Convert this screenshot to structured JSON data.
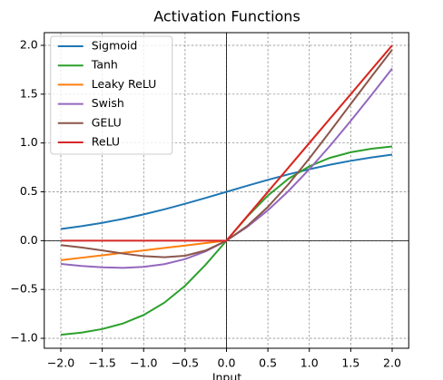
{
  "chart_data": {
    "type": "line",
    "title": "Activation Functions",
    "x_label": "Input",
    "x": [
      -2,
      -1.75,
      -1.5,
      -1.25,
      -1,
      -0.75,
      -0.5,
      -0.25,
      0,
      0.25,
      0.5,
      0.75,
      1,
      1.25,
      1.5,
      1.75,
      2
    ],
    "series": [
      {
        "name": "Sigmoid",
        "color": "#1f77b4",
        "values": [
          0.1192,
          0.148,
          0.1824,
          0.2227,
          0.2689,
          0.3208,
          0.3775,
          0.4378,
          0.5,
          0.5622,
          0.6225,
          0.6792,
          0.7311,
          0.7773,
          0.8176,
          0.852,
          0.8808
        ]
      },
      {
        "name": "Tanh",
        "color": "#2ca02c",
        "values": [
          -0.964,
          -0.9414,
          -0.9051,
          -0.8483,
          -0.7616,
          -0.6351,
          -0.4621,
          -0.2449,
          0,
          0.2449,
          0.4621,
          0.6351,
          0.7616,
          0.8483,
          0.9051,
          0.9414,
          0.964
        ]
      },
      {
        "name": "Leaky ReLU",
        "color": "#ff7f0e",
        "values": [
          -0.2,
          -0.175,
          -0.15,
          -0.125,
          -0.1,
          -0.075,
          -0.05,
          -0.025,
          0,
          0.25,
          0.5,
          0.75,
          1,
          1.25,
          1.5,
          1.75,
          2
        ]
      },
      {
        "name": "Swish",
        "color": "#9467bd",
        "values": [
          -0.2384,
          -0.259,
          -0.2736,
          -0.2784,
          -0.2689,
          -0.2406,
          -0.1888,
          -0.1094,
          0,
          0.1406,
          0.3112,
          0.5094,
          0.7311,
          0.9716,
          1.2264,
          1.491,
          1.7616
        ]
      },
      {
        "name": "GELU",
        "color": "#8c564b",
        "values": [
          -0.0455,
          -0.0701,
          -0.1002,
          -0.132,
          -0.1587,
          -0.17,
          -0.1543,
          -0.1003,
          0,
          0.1497,
          0.3457,
          0.58,
          0.8413,
          1.118,
          1.3998,
          1.6799,
          1.9545
        ]
      },
      {
        "name": "ReLU",
        "color": "#d62728",
        "values": [
          0,
          0,
          0,
          0,
          0,
          0,
          0,
          0,
          0,
          0.25,
          0.5,
          0.75,
          1,
          1.25,
          1.5,
          1.75,
          2
        ]
      }
    ],
    "xlim": [
      -2.2,
      2.2
    ],
    "ylim": [
      -1.102,
      2.13
    ],
    "xticks": [
      {
        "value": -2,
        "label": "−2.0"
      },
      {
        "value": -1.5,
        "label": "−1.5"
      },
      {
        "value": -1,
        "label": "−1.0"
      },
      {
        "value": -0.5,
        "label": "−0.5"
      },
      {
        "value": 0,
        "label": "0.0"
      },
      {
        "value": 0.5,
        "label": "0.5"
      },
      {
        "value": 1,
        "label": "1.0"
      },
      {
        "value": 1.5,
        "label": "1.5"
      },
      {
        "value": 2,
        "label": "2.0"
      }
    ],
    "yticks": [
      {
        "value": -1,
        "label": "−1.0"
      },
      {
        "value": -0.5,
        "label": "−0.5"
      },
      {
        "value": 0,
        "label": "0.0"
      },
      {
        "value": 0.5,
        "label": "0.5"
      },
      {
        "value": 1,
        "label": "1.0"
      },
      {
        "value": 1.5,
        "label": "1.5"
      },
      {
        "value": 2,
        "label": "2.0"
      }
    ],
    "grid": true,
    "legend": "upper left"
  }
}
